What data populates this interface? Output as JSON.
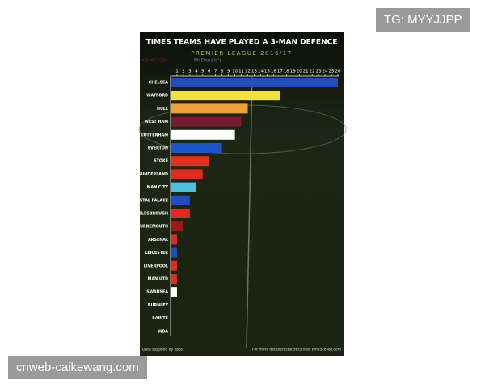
{
  "watermark_top": "TG: MYYJJPP",
  "watermark_bottom": "cnweb-caikewang.com",
  "chart_data": {
    "type": "bar",
    "orientation": "horizontal",
    "title": "TIMES TEAMS HAVE PLAYED A 3-MAN DEFENCE",
    "subtitle": "PREMIER LEAGUE 2016/17",
    "banner": [
      "KIA MOTORS",
      "McDonald's"
    ],
    "categories": [
      "CHELSEA",
      "WATFORD",
      "HULL",
      "WEST HAM",
      "TOTTENHAM",
      "EVERTON",
      "STOKE",
      "SUNDERLAND",
      "MAN CITY",
      "CRYSTAL PALACE",
      "MIDDLESBROUGH",
      "BOURNEMOUTH",
      "ARSENAL",
      "LEICESTER",
      "LIVERPOOL",
      "MAN UTD",
      "SWANSEA",
      "BURNLEY",
      "SAINTS",
      "WBA"
    ],
    "values": [
      26,
      17,
      12,
      11,
      10,
      8,
      6,
      5,
      4,
      3,
      3,
      2,
      1,
      1,
      1,
      1,
      1,
      0,
      0,
      0
    ],
    "colors": [
      "#1f4fbf",
      "#f2e233",
      "#f0a030",
      "#7a1a2e",
      "#ffffff",
      "#1a55c8",
      "#e03020",
      "#e02a1a",
      "#4cc0e0",
      "#1e4fc0",
      "#e02a20",
      "#a01818",
      "#e02a20",
      "#1a4fc0",
      "#e02a20",
      "#e02a20",
      "#ffffff",
      "#7a1a2e",
      "#e02a20",
      "#1a2a6a"
    ],
    "xlim": [
      0,
      26
    ],
    "xticks": [
      1,
      2,
      3,
      4,
      5,
      6,
      7,
      8,
      9,
      10,
      11,
      12,
      13,
      14,
      15,
      16,
      17,
      18,
      19,
      20,
      21,
      22,
      23,
      24,
      25,
      26
    ],
    "footer_left": "Data supplied by opta",
    "footer_right": "For more detailed statistics visit WhoScored.com"
  }
}
